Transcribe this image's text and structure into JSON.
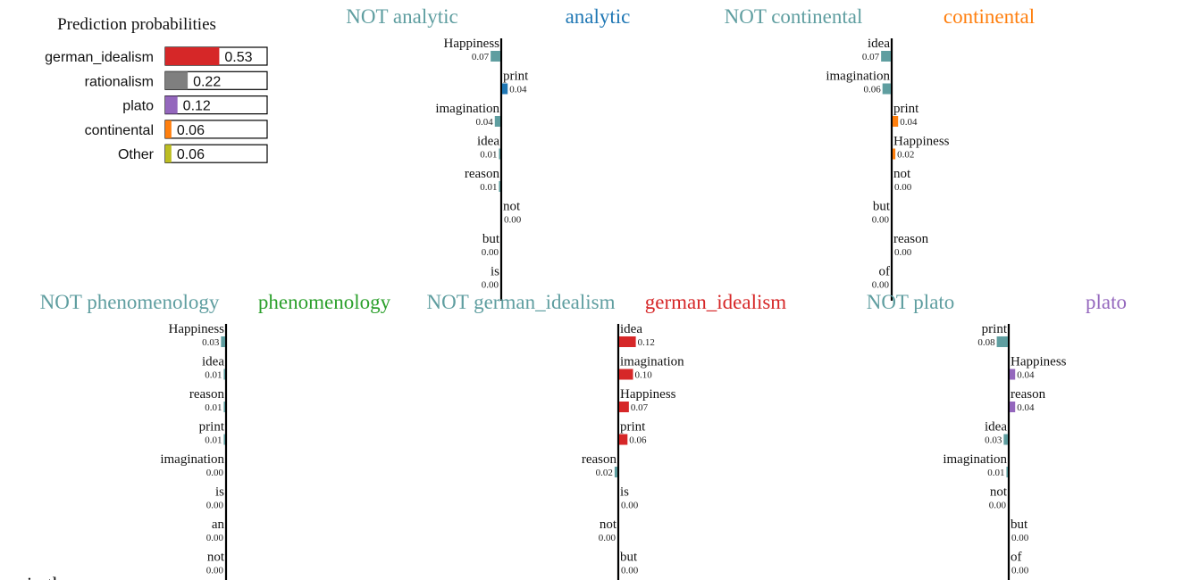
{
  "prediction": {
    "title": "Prediction probabilities",
    "items": [
      {
        "label": "german_idealism",
        "value": 0.53,
        "display": "0.53",
        "color": "#d62728"
      },
      {
        "label": "rationalism",
        "value": 0.22,
        "display": "0.22",
        "color": "#7f7f7f"
      },
      {
        "label": "plato",
        "value": 0.12,
        "display": "0.12",
        "color": "#9467bd"
      },
      {
        "label": "continental",
        "value": 0.06,
        "display": "0.06",
        "color": "#ff7f0e"
      },
      {
        "label": "Other",
        "value": 0.06,
        "display": "0.06",
        "color": "#bcbd22"
      }
    ]
  },
  "chart_data": [
    {
      "type": "bar",
      "not_label": "NOT analytic",
      "class_label": "analytic",
      "class_color": "#1f77b4",
      "not_color": "#5f9ea0",
      "features": [
        {
          "name": "Happiness",
          "value": -0.07,
          "display": "0.07"
        },
        {
          "name": "print",
          "value": 0.04,
          "display": "0.04"
        },
        {
          "name": "imagination",
          "value": -0.04,
          "display": "0.04"
        },
        {
          "name": "idea",
          "value": -0.01,
          "display": "0.01"
        },
        {
          "name": "reason",
          "value": -0.01,
          "display": "0.01"
        },
        {
          "name": "not",
          "value": 0.0,
          "display": "0.00"
        },
        {
          "name": "but",
          "value": -0.0,
          "display": "0.00"
        },
        {
          "name": "is",
          "value": -0.0,
          "display": "0.00"
        }
      ]
    },
    {
      "type": "bar",
      "not_label": "NOT continental",
      "class_label": "continental",
      "class_color": "#ff7f0e",
      "not_color": "#5f9ea0",
      "features": [
        {
          "name": "idea",
          "value": -0.07,
          "display": "0.07"
        },
        {
          "name": "imagination",
          "value": -0.06,
          "display": "0.06"
        },
        {
          "name": "print",
          "value": 0.04,
          "display": "0.04"
        },
        {
          "name": "Happiness",
          "value": 0.02,
          "display": "0.02"
        },
        {
          "name": "not",
          "value": 0.0,
          "display": "0.00"
        },
        {
          "name": "but",
          "value": -0.0,
          "display": "0.00"
        },
        {
          "name": "reason",
          "value": 0.0,
          "display": "0.00"
        },
        {
          "name": "of",
          "value": -0.0,
          "display": "0.00"
        }
      ]
    },
    {
      "type": "bar",
      "not_label": "NOT phenomenology",
      "class_label": "phenomenology",
      "class_color": "#2ca02c",
      "not_color": "#5f9ea0",
      "features": [
        {
          "name": "Happiness",
          "value": -0.03,
          "display": "0.03"
        },
        {
          "name": "idea",
          "value": -0.01,
          "display": "0.01"
        },
        {
          "name": "reason",
          "value": -0.01,
          "display": "0.01"
        },
        {
          "name": "print",
          "value": -0.01,
          "display": "0.01"
        },
        {
          "name": "imagination",
          "value": -0.0,
          "display": "0.00"
        },
        {
          "name": "is",
          "value": -0.0,
          "display": "0.00"
        },
        {
          "name": "an",
          "value": -0.0,
          "display": "0.00"
        },
        {
          "name": "not",
          "value": -0.0,
          "display": "0.00"
        }
      ]
    },
    {
      "type": "bar",
      "not_label": "NOT german_idealism",
      "class_label": "german_idealism",
      "class_color": "#d62728",
      "not_color": "#5f9ea0",
      "features": [
        {
          "name": "idea",
          "value": 0.12,
          "display": "0.12"
        },
        {
          "name": "imagination",
          "value": 0.1,
          "display": "0.10"
        },
        {
          "name": "Happiness",
          "value": 0.07,
          "display": "0.07"
        },
        {
          "name": "print",
          "value": 0.06,
          "display": "0.06"
        },
        {
          "name": "reason",
          "value": -0.02,
          "display": "0.02"
        },
        {
          "name": "is",
          "value": 0.0,
          "display": "0.00"
        },
        {
          "name": "not",
          "value": -0.0,
          "display": "0.00"
        },
        {
          "name": "but",
          "value": 0.0,
          "display": "0.00"
        }
      ]
    },
    {
      "type": "bar",
      "not_label": "NOT plato",
      "class_label": "plato",
      "class_color": "#9467bd",
      "not_color": "#5f9ea0",
      "features": [
        {
          "name": "print",
          "value": -0.08,
          "display": "0.08"
        },
        {
          "name": "Happiness",
          "value": 0.04,
          "display": "0.04"
        },
        {
          "name": "reason",
          "value": 0.04,
          "display": "0.04"
        },
        {
          "name": "idea",
          "value": -0.03,
          "display": "0.03"
        },
        {
          "name": "imagination",
          "value": -0.01,
          "display": "0.01"
        },
        {
          "name": "not",
          "value": -0.0,
          "display": "0.00"
        },
        {
          "name": "but",
          "value": 0.0,
          "display": "0.00"
        },
        {
          "name": "of",
          "value": 0.0,
          "display": "0.00"
        }
      ]
    }
  ],
  "bottom_text": "... in the ... ... ... ... ... ... ... ... ... ..."
}
